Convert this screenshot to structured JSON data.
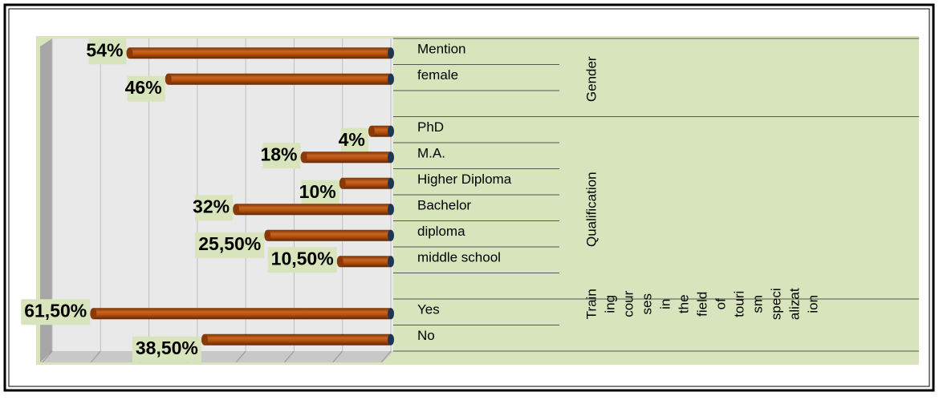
{
  "chart_data": {
    "type": "bar",
    "orientation": "horizontal",
    "categories": [
      "Mention",
      "female",
      null,
      "PhD",
      "M.A.",
      " Higher Diploma",
      "Bachelor",
      "diploma",
      "middle school",
      null,
      "Yes",
      "No"
    ],
    "values": [
      54,
      46,
      null,
      4,
      18,
      10,
      32,
      25.5,
      10.5,
      null,
      61.5,
      38.5
    ],
    "value_labels": [
      "54%",
      "46%",
      null,
      "4%",
      "18%",
      "10%",
      "32%",
      "25,50%",
      "10,50%",
      null,
      "61,50%",
      "38,50%"
    ],
    "groups": [
      {
        "label": [
          "Gender"
        ],
        "start": 0,
        "end": 2
      },
      {
        "label": [
          "Qualification"
        ],
        "start": 3,
        "end": 9
      },
      {
        "label": [
          "Train",
          "ing",
          "cour",
          "ses",
          "in",
          "the",
          "field",
          "of",
          "touri",
          "sm",
          "speci",
          "alizat",
          "ion"
        ],
        "start": 10,
        "end": 11
      }
    ],
    "color": "#b5500f",
    "xlim": [
      0,
      70
    ],
    "xticks": [
      0,
      10,
      20,
      30,
      40,
      50,
      60,
      70
    ],
    "x_reversed": true,
    "grid": true
  }
}
